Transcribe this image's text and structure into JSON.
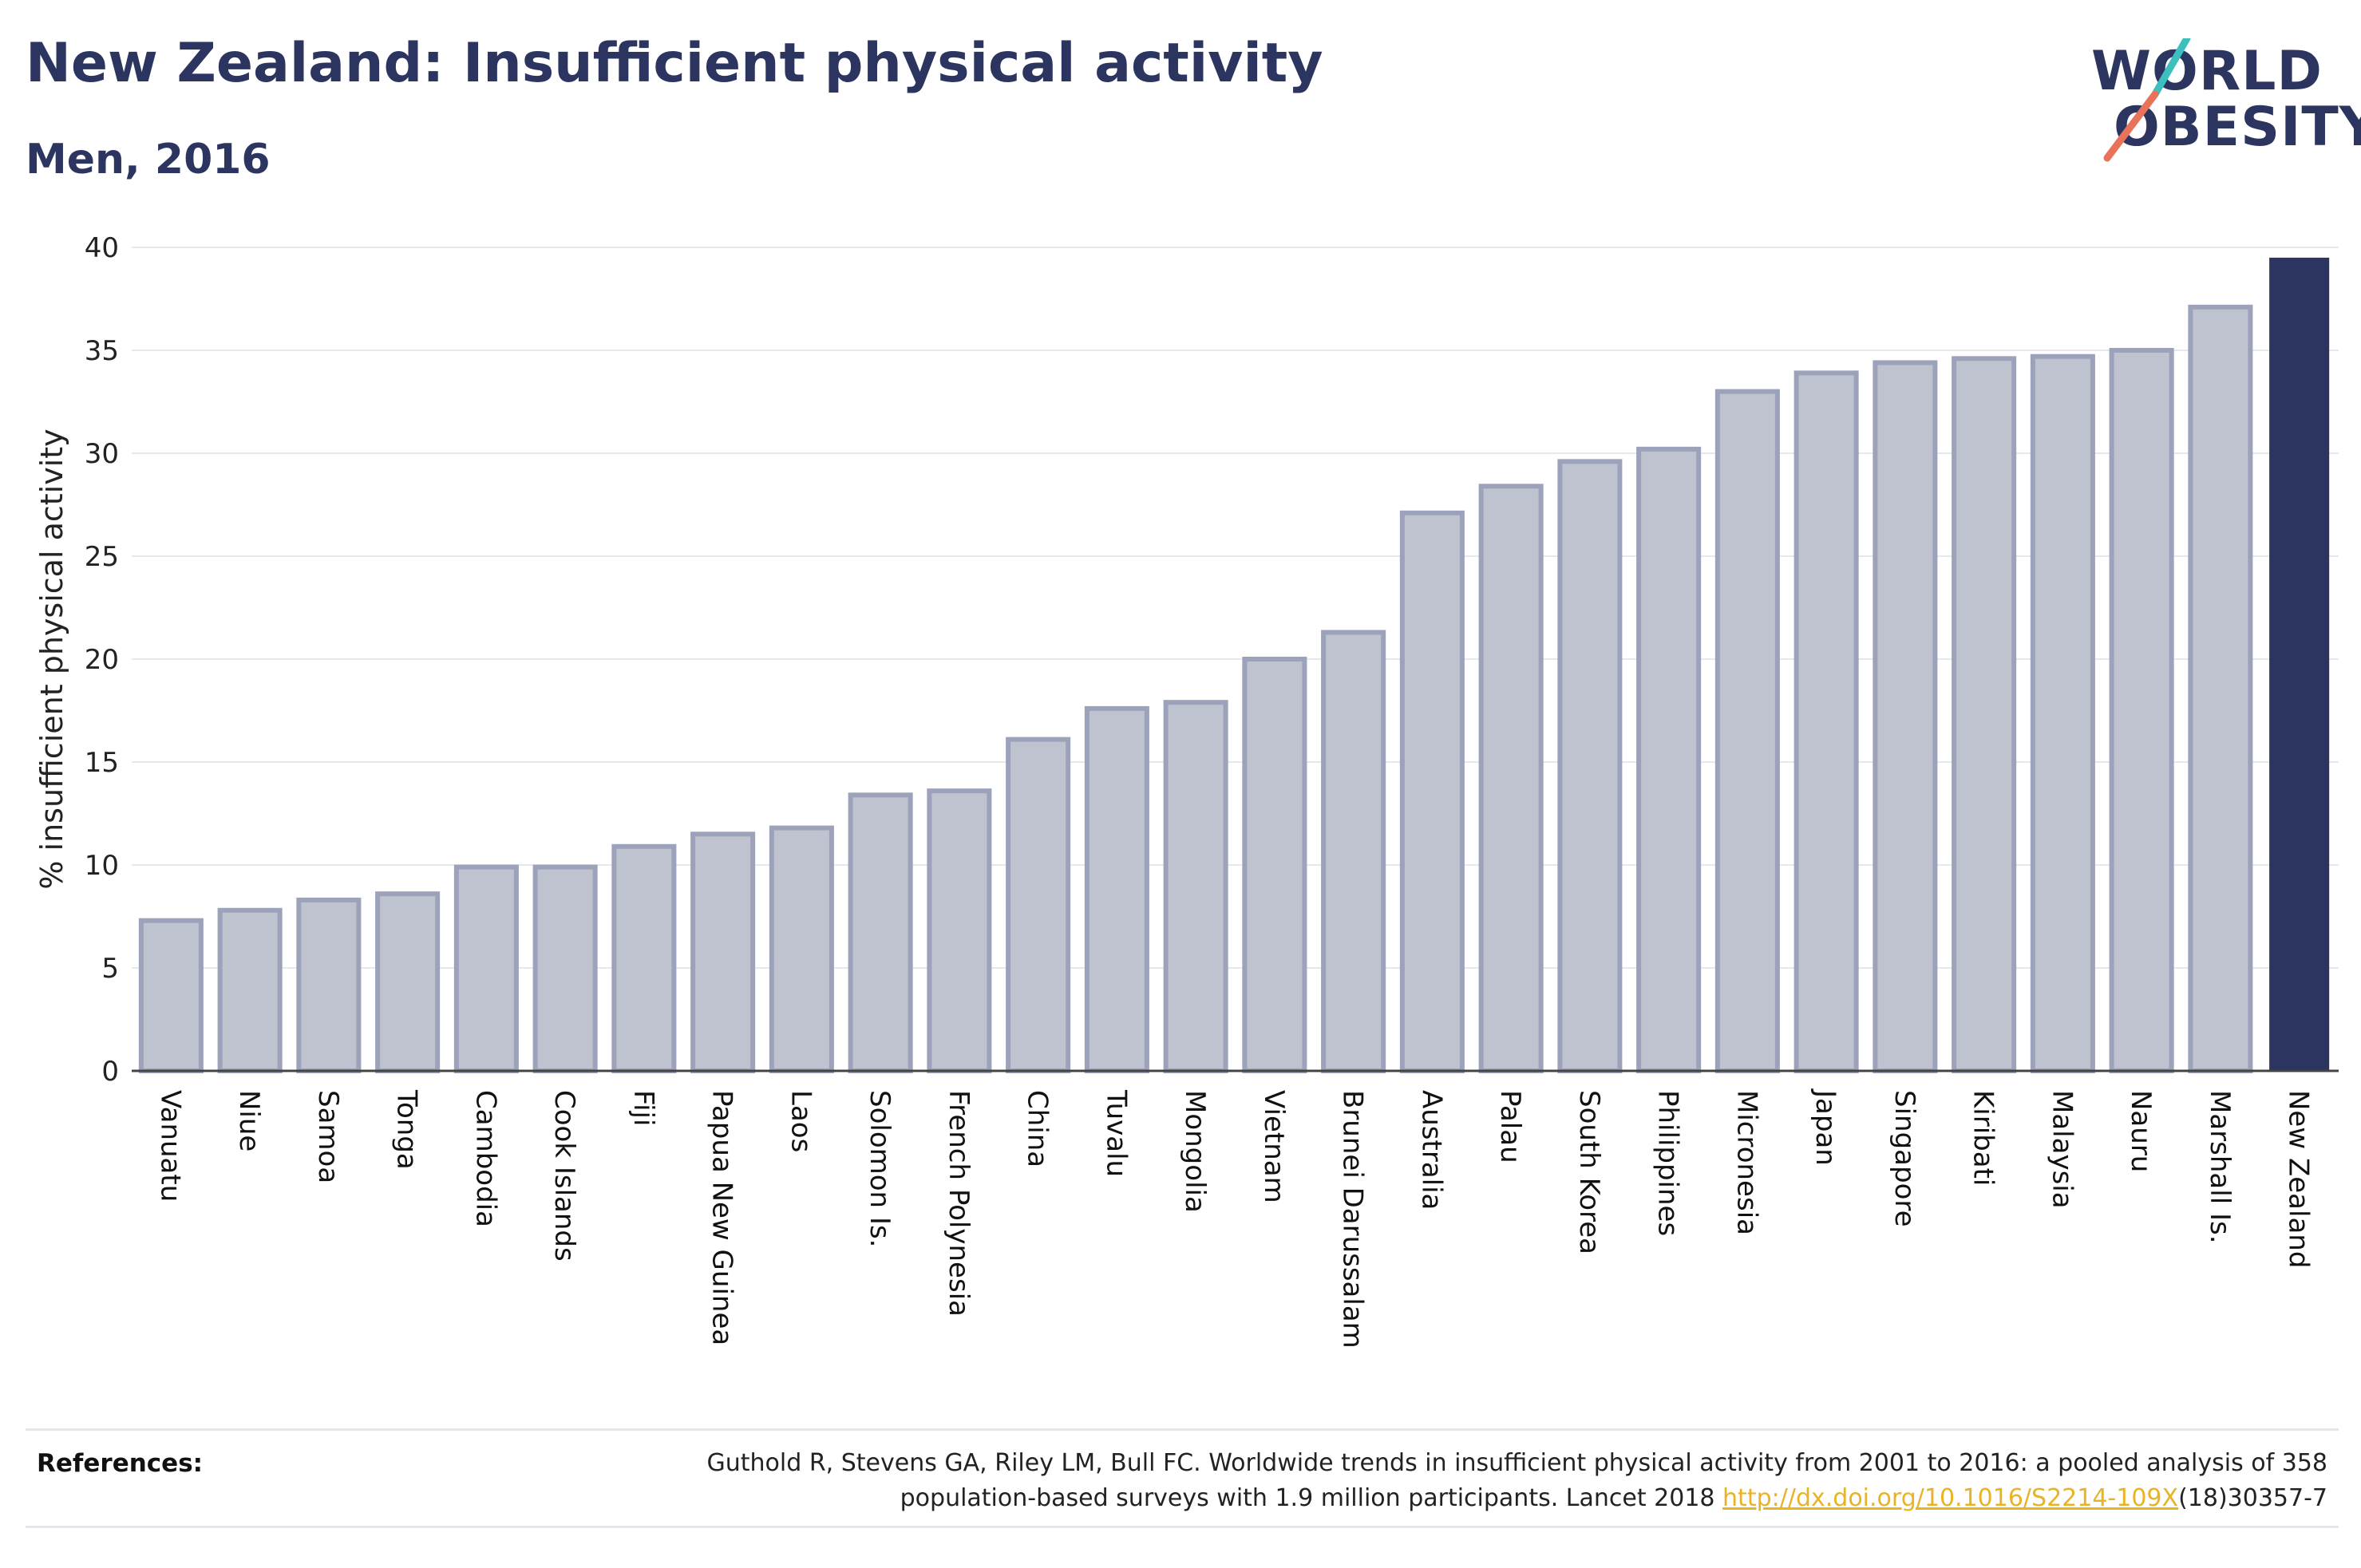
{
  "title": "New Zealand: Insufficient physical activity",
  "subtitle": "Men, 2016",
  "logo": {
    "line1": "WORLD",
    "line2": "OBESITY"
  },
  "colors": {
    "highlight_bar": "#2b3560",
    "other_bar_fill": "#bfc2cf",
    "other_bar_stroke": "#9da2bb",
    "text": "#2b3560",
    "link": "#e8b325",
    "logo_slash_top": "#3dbfbf",
    "logo_slash_bottom": "#e8735a"
  },
  "chart_data": {
    "type": "bar",
    "title": "New Zealand: Insufficient physical activity",
    "subtitle": "Men, 2016",
    "xlabel": "",
    "ylabel": "% insufficient physical activity",
    "ylim": [
      0,
      40
    ],
    "yticks": [
      "0",
      "5",
      "10",
      "15",
      "20",
      "25",
      "30",
      "35",
      "40"
    ],
    "grid": true,
    "highlight": "New Zealand",
    "categories": [
      "Vanuatu",
      "Niue",
      "Samoa",
      "Tonga",
      "Cambodia",
      "Cook Islands",
      "Fiji",
      "Papua New Guinea",
      "Laos",
      "Solomon Is.",
      "French Polynesia",
      "China",
      "Tuvalu",
      "Mongolia",
      "Vietnam",
      "Brunei Darussalam",
      "Australia",
      "Palau",
      "South Korea",
      "Philippines",
      "Micronesia",
      "Japan",
      "Singapore",
      "Kiribati",
      "Malaysia",
      "Nauru",
      "Marshall Is.",
      "New Zealand"
    ],
    "values": [
      7.3,
      7.8,
      8.3,
      8.6,
      9.9,
      9.9,
      10.9,
      11.5,
      11.8,
      13.4,
      13.6,
      16.1,
      17.6,
      17.9,
      20.0,
      21.3,
      27.1,
      28.4,
      29.6,
      30.2,
      33.0,
      33.9,
      34.4,
      34.6,
      34.7,
      35.0,
      37.1,
      39.5
    ]
  },
  "references": {
    "label": "References:",
    "text_line1": "Guthold R, Stevens GA, Riley LM, Bull FC. Worldwide trends in insufficient physical activity from 2001 to 2016: a pooled analysis of 358",
    "text_line2": "population-based surveys with 1.9 million participants. Lancet 2018",
    "link": "http://dx.doi.org/10.1016/S2214-109X",
    "suffix": "(18)30357-7"
  }
}
